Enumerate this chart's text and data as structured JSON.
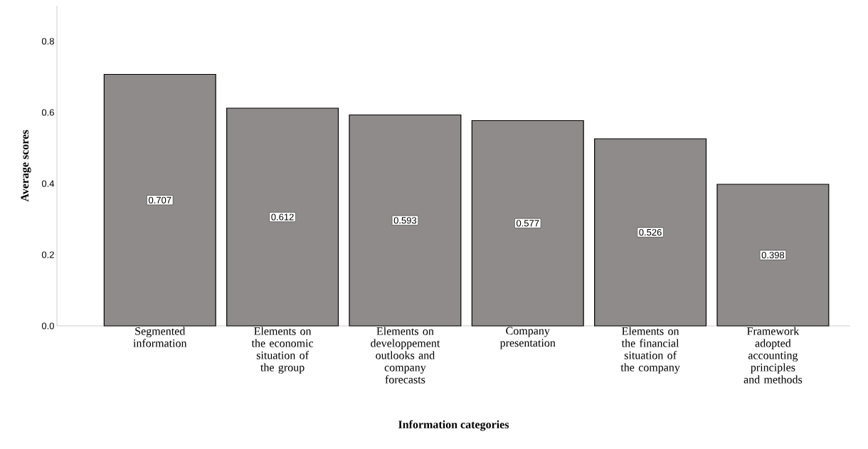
{
  "chart_data": {
    "type": "bar",
    "xlabel": "Information categories",
    "ylabel": "Average scores",
    "categories": [
      "Segmented information",
      "Elements on the economic situation of the group",
      "Elements on developpement outlooks and company forecasts",
      "Company presentation",
      "Elements on the financial situation of the company",
      "Framework adopted accounting principles and methods"
    ],
    "values": [
      0.707,
      0.612,
      0.593,
      0.577,
      0.526,
      0.398
    ],
    "value_labels": [
      "0.707",
      "0.612",
      "0.593",
      "0.577",
      "0.526",
      "0.398"
    ],
    "color": "#8f8b8b",
    "ylim": [
      0,
      0.9
    ],
    "yticks": [
      {
        "value": 0,
        "label": "0.0"
      },
      0.2,
      0.4,
      0.6,
      0.8
    ],
    "grid": false
  }
}
